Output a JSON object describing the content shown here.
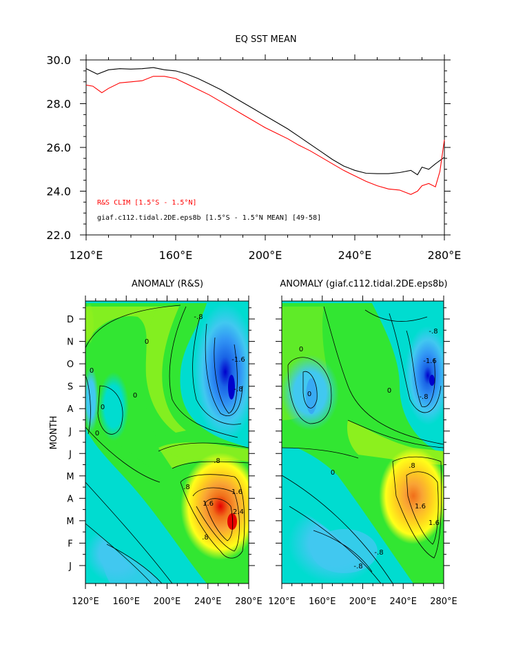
{
  "chart_data": [
    {
      "type": "line",
      "title": "EQ SST MEAN",
      "xlabel": "",
      "ylabel": "",
      "xlim": [
        120,
        280
      ],
      "ylim": [
        22,
        30
      ],
      "x_tick_values": [
        120,
        160,
        200,
        240,
        280
      ],
      "x_tick_labels": [
        "120°E",
        "160°E",
        "200°E",
        "240°E",
        "280°E"
      ],
      "y_tick_values": [
        22,
        24,
        26,
        28,
        30
      ],
      "y_tick_labels": [
        "22.0",
        "24.0",
        "26.0",
        "28.0",
        "30.0"
      ],
      "legend_position": "bottom-left",
      "series": [
        {
          "name": "giaf.c112.tidal.2DE.eps8b [1.5°S - 1.5°N MEAN] [49-58]",
          "color": "#000000",
          "x": [
            120,
            125,
            130,
            135,
            140,
            145,
            150,
            155,
            160,
            165,
            170,
            175,
            180,
            185,
            190,
            195,
            200,
            205,
            210,
            215,
            220,
            225,
            230,
            235,
            240,
            245,
            250,
            255,
            260,
            265,
            268,
            270,
            273,
            276,
            280
          ],
          "y": [
            29.6,
            29.35,
            29.55,
            29.6,
            29.58,
            29.6,
            29.65,
            29.55,
            29.5,
            29.35,
            29.15,
            28.9,
            28.65,
            28.35,
            28.05,
            27.75,
            27.45,
            27.15,
            26.85,
            26.5,
            26.15,
            25.8,
            25.45,
            25.15,
            24.95,
            24.82,
            24.8,
            24.8,
            24.85,
            24.95,
            24.75,
            25.1,
            25.0,
            25.25,
            25.55
          ]
        },
        {
          "name": "R&S CLIM [1.5°S - 1.5°N]",
          "color": "#ff0000",
          "x": [
            120,
            123,
            127,
            130,
            135,
            140,
            145,
            150,
            155,
            160,
            165,
            170,
            175,
            180,
            185,
            190,
            195,
            200,
            205,
            210,
            215,
            220,
            225,
            230,
            235,
            240,
            245,
            250,
            255,
            260,
            265,
            268,
            270,
            273,
            276,
            278,
            280
          ],
          "y": [
            28.85,
            28.8,
            28.5,
            28.7,
            28.95,
            29.0,
            29.05,
            29.25,
            29.25,
            29.15,
            28.9,
            28.65,
            28.4,
            28.1,
            27.8,
            27.5,
            27.2,
            26.9,
            26.65,
            26.4,
            26.1,
            25.85,
            25.55,
            25.25,
            24.95,
            24.7,
            24.45,
            24.25,
            24.1,
            24.05,
            23.85,
            24.0,
            24.25,
            24.35,
            24.2,
            24.9,
            26.35
          ]
        }
      ]
    },
    {
      "type": "heatmap",
      "title": "ANOMALY (R&S)",
      "ylabel": "MONTH",
      "xlim": [
        120,
        280
      ],
      "x_tick_labels": [
        "120°E",
        "160°E",
        "200°E",
        "240°E",
        "280°E"
      ],
      "y_tick_labels": [
        "J",
        "F",
        "M",
        "A",
        "M",
        "J",
        "J",
        "A",
        "S",
        "O",
        "N",
        "D"
      ],
      "contour_labels": [
        "-.8",
        "0",
        "0",
        "0",
        "0",
        "-1.6",
        "-.8",
        ".8",
        ".8",
        "1.6",
        "2.4",
        "1.6",
        ".8",
        "0"
      ],
      "features": [
        {
          "kind": "cold",
          "lon": 262,
          "month": 9.1,
          "value": -2.6
        },
        {
          "kind": "warm",
          "lon": 263,
          "month": 4.0,
          "value": 3.0
        },
        {
          "kind": "cold",
          "lon": 126,
          "month": 7.7,
          "value": -0.6
        },
        {
          "kind": "cold",
          "lon": 200,
          "month": 2.0,
          "value": -0.8
        }
      ]
    },
    {
      "type": "heatmap",
      "title": "ANOMALY (giaf.c112.tidal.2DE.eps8b)",
      "ylabel": "",
      "xlim": [
        120,
        280
      ],
      "x_tick_labels": [
        "120°E",
        "160°E",
        "200°E",
        "240°E",
        "280°E"
      ],
      "y_tick_labels": [
        "J",
        "F",
        "M",
        "A",
        "M",
        "J",
        "J",
        "A",
        "S",
        "O",
        "N",
        "D"
      ],
      "contour_labels": [
        "0",
        "0",
        "0",
        "-.8",
        "-1.6",
        "-.8",
        ".8",
        "1.6",
        "1.6",
        "0",
        "-.8",
        "-.8"
      ],
      "features": [
        {
          "kind": "cold",
          "lon": 270,
          "month": 9.1,
          "value": -2.2
        },
        {
          "kind": "warm",
          "lon": 272,
          "month": 3.9,
          "value": 2.2
        },
        {
          "kind": "cold",
          "lon": 152,
          "month": 8.7,
          "value": -0.6
        },
        {
          "kind": "cold",
          "lon": 230,
          "month": 2.0,
          "value": -1.0
        }
      ]
    }
  ]
}
